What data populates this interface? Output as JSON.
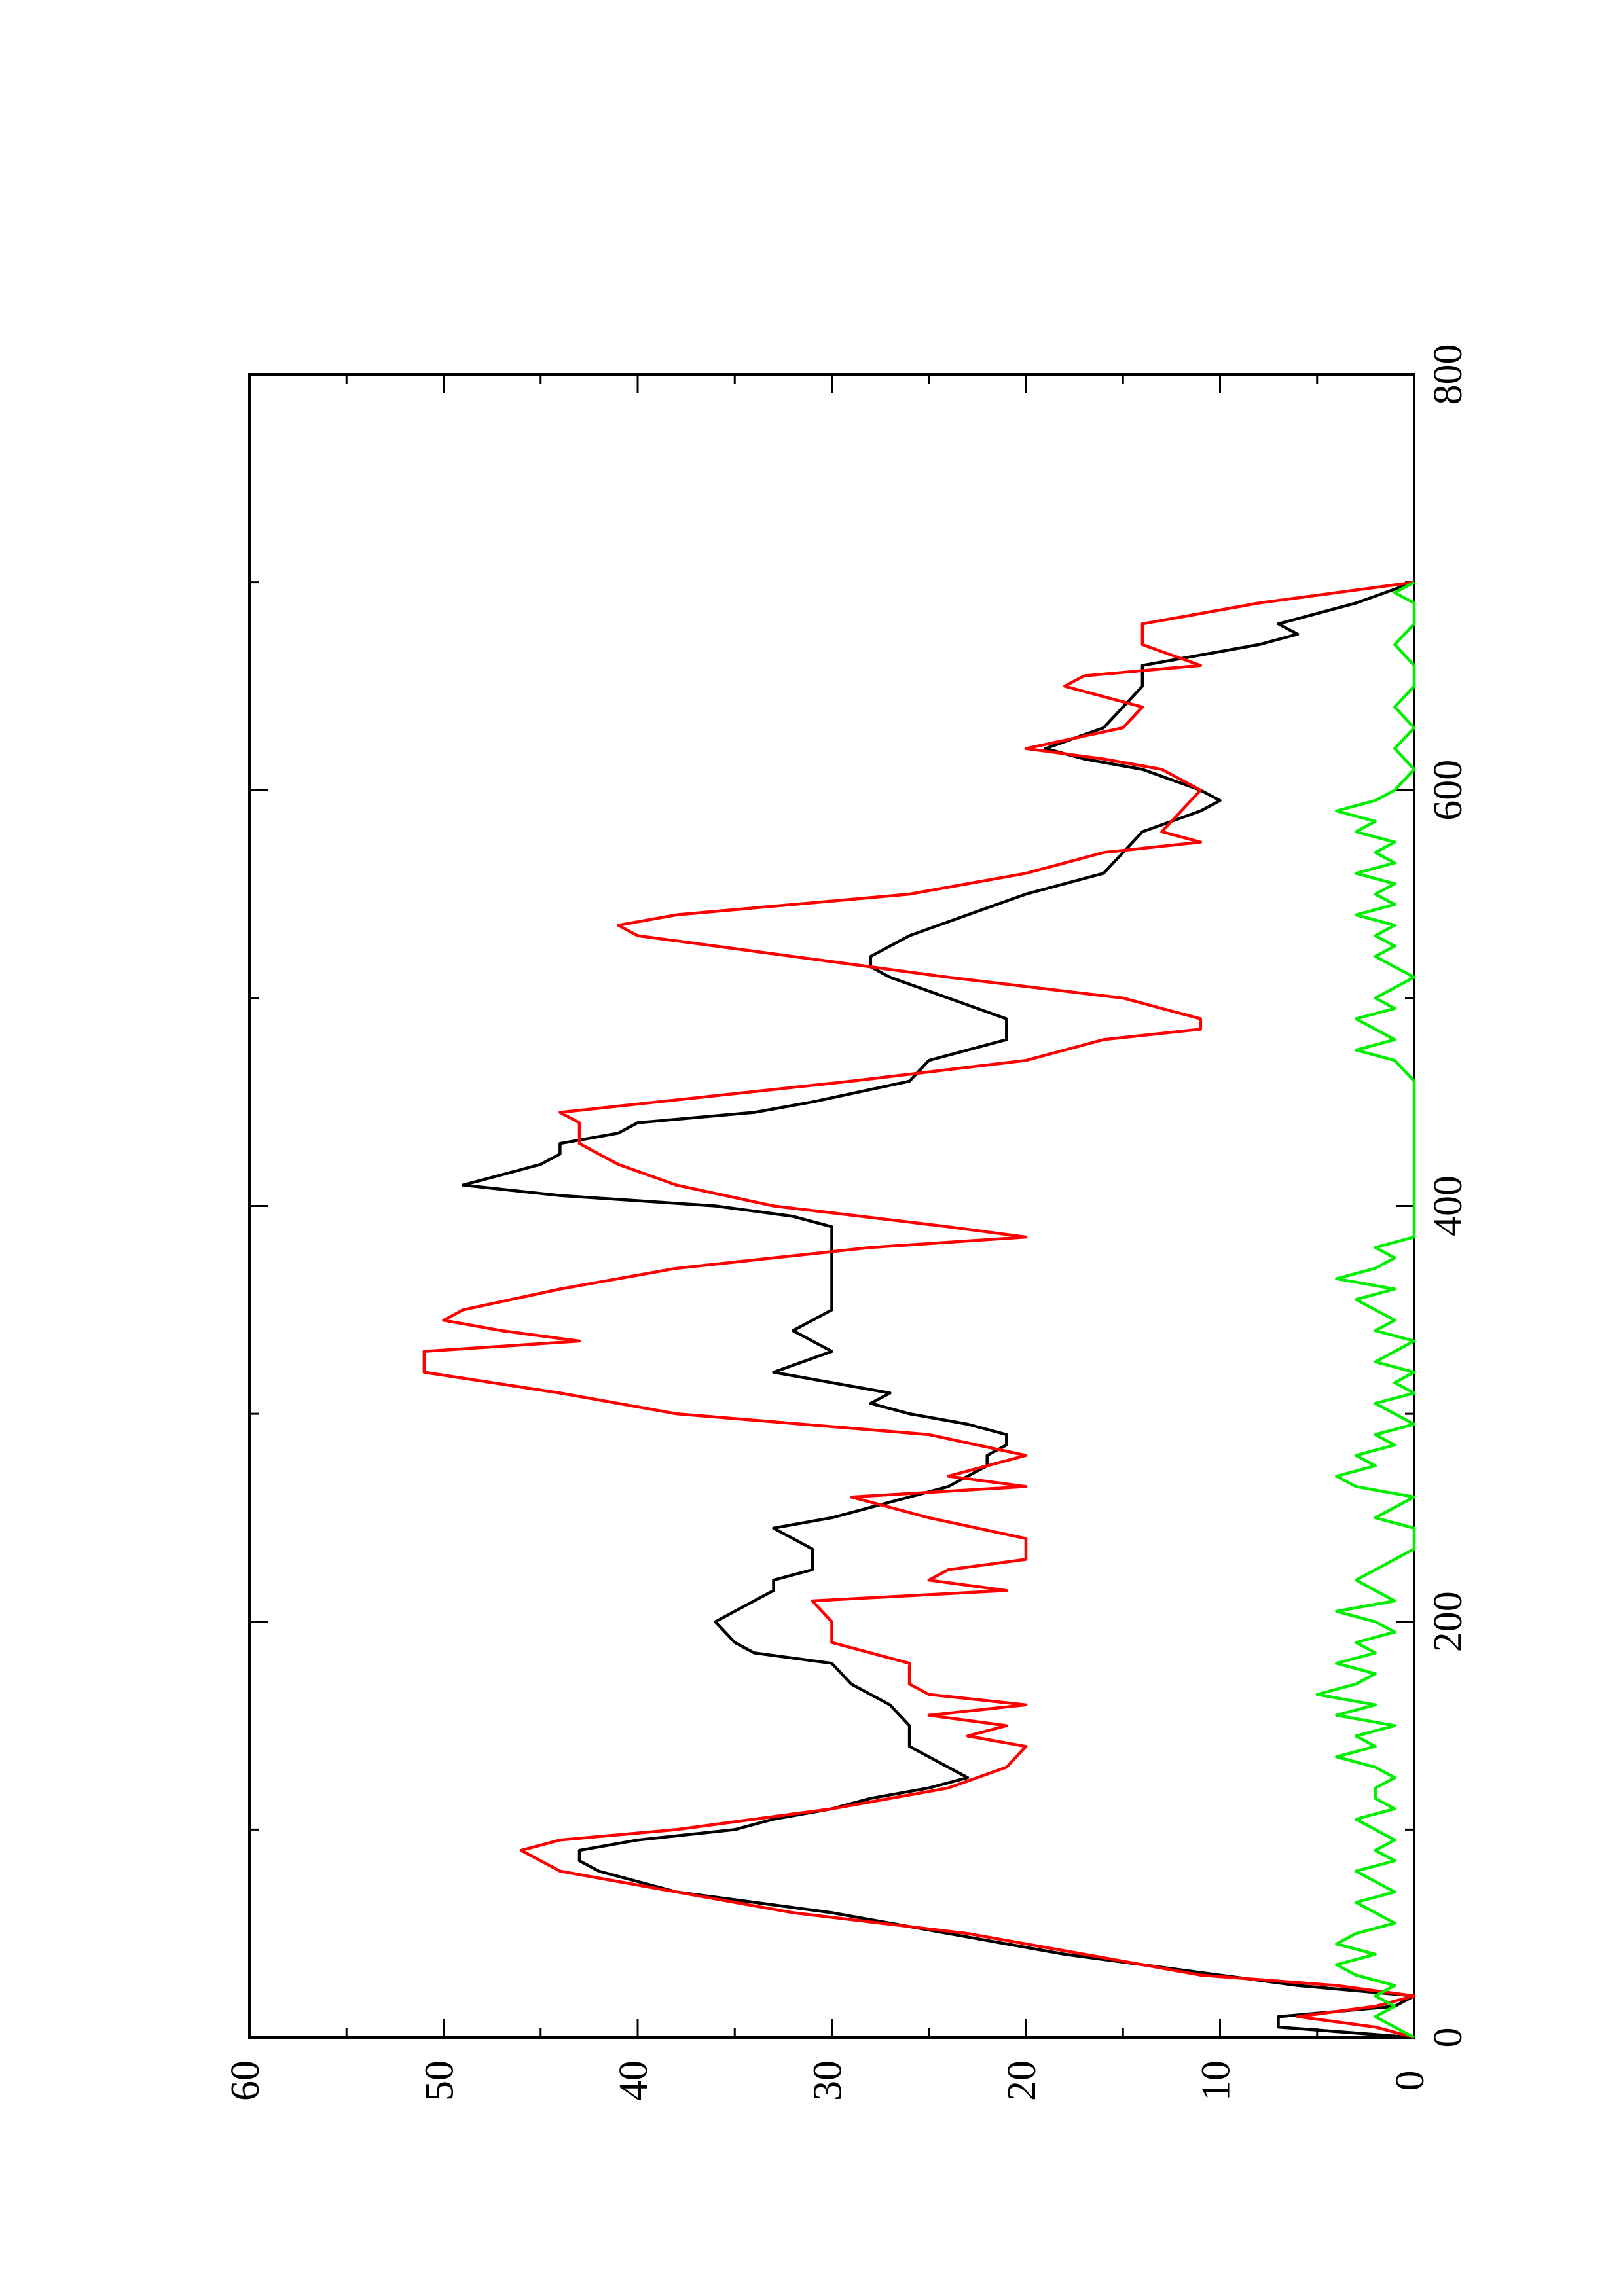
{
  "chart_data": {
    "type": "line",
    "orientation": "rotated-90-ccw",
    "title": "",
    "xlabel": "",
    "ylabel": "",
    "xlim": [
      0,
      800
    ],
    "ylim": [
      0,
      60
    ],
    "x_ticks": [
      0,
      200,
      400,
      600,
      800
    ],
    "x_minor_ticks": [
      100,
      300,
      500,
      700
    ],
    "y_ticks": [
      0,
      10,
      20,
      30,
      40,
      50,
      60
    ],
    "y_minor_ticks": [
      5,
      15,
      25,
      35,
      45,
      55
    ],
    "grid": false,
    "legend": "none",
    "series": [
      {
        "color": "#000000",
        "x": [
          0,
          5,
          10,
          15,
          20,
          25,
          30,
          40,
          50,
          60,
          65,
          70,
          80,
          85,
          90,
          95,
          100,
          105,
          110,
          115,
          120,
          125,
          130,
          135,
          140,
          150,
          160,
          170,
          180,
          185,
          190,
          200,
          205,
          210,
          215,
          220,
          225,
          230,
          235,
          240,
          245,
          250,
          255,
          260,
          265,
          270,
          275,
          280,
          285,
          290,
          295,
          300,
          305,
          310,
          320,
          330,
          340,
          350,
          360,
          370,
          380,
          390,
          395,
          400,
          405,
          410,
          415,
          420,
          425,
          430,
          435,
          440,
          445,
          450,
          460,
          470,
          480,
          490,
          500,
          510,
          515,
          520,
          525,
          530,
          540,
          550,
          560,
          570,
          580,
          590,
          595,
          600,
          610,
          615,
          620,
          630,
          640,
          650,
          660,
          670,
          675,
          680,
          690,
          700
        ],
        "values": [
          0,
          7,
          7,
          1,
          0,
          6,
          10,
          18,
          24,
          30,
          34,
          38,
          42,
          43,
          43,
          40,
          35,
          33,
          30,
          28,
          25,
          23,
          24,
          25,
          26,
          26,
          27,
          29,
          30,
          34,
          35,
          36,
          35,
          34,
          33,
          33,
          31,
          31,
          31,
          32,
          33,
          30,
          28,
          26,
          24,
          23,
          22,
          22,
          21,
          21,
          23,
          26,
          28,
          27,
          33,
          30,
          32,
          30,
          30,
          30,
          30,
          30,
          32,
          36,
          44,
          49,
          47,
          45,
          44,
          44,
          41,
          40,
          34,
          31,
          26,
          25,
          21,
          21,
          24,
          27,
          28,
          28,
          27,
          26,
          23,
          20,
          16,
          15,
          14,
          11,
          10,
          11,
          14,
          17,
          19,
          16,
          15,
          14,
          14,
          8,
          6,
          7,
          3,
          0
        ]
      },
      {
        "color": "#ff0000",
        "x": [
          0,
          5,
          10,
          15,
          20,
          25,
          30,
          40,
          50,
          60,
          70,
          80,
          90,
          95,
          100,
          110,
          120,
          130,
          140,
          145,
          150,
          155,
          160,
          165,
          170,
          180,
          190,
          200,
          210,
          215,
          220,
          225,
          230,
          240,
          250,
          260,
          265,
          270,
          280,
          290,
          300,
          310,
          320,
          330,
          335,
          340,
          345,
          350,
          360,
          370,
          380,
          385,
          390,
          400,
          410,
          420,
          430,
          440,
          445,
          450,
          460,
          470,
          480,
          485,
          490,
          500,
          510,
          520,
          530,
          535,
          540,
          550,
          560,
          570,
          575,
          580,
          590,
          600,
          610,
          615,
          620,
          630,
          640,
          650,
          655,
          660,
          670,
          680,
          690,
          700
        ],
        "values": [
          0,
          2,
          6,
          2,
          0,
          4,
          11,
          17,
          23,
          32,
          38,
          44,
          46,
          44,
          38,
          30,
          24,
          21,
          20,
          23,
          21,
          25,
          20,
          25,
          26,
          26,
          30,
          30,
          31,
          21,
          25,
          24,
          20,
          20,
          25,
          29,
          20,
          24,
          20,
          25,
          38,
          44,
          51,
          51,
          43,
          47,
          50,
          49,
          44,
          38,
          28,
          20,
          24,
          33,
          38,
          41,
          43,
          43,
          44,
          39,
          29,
          20,
          16,
          11,
          11,
          15,
          24,
          32,
          40,
          41,
          38,
          26,
          20,
          16,
          11,
          13,
          12,
          11,
          13,
          16,
          20,
          15,
          14,
          18,
          17,
          11,
          14,
          14,
          8,
          0
        ]
      },
      {
        "color": "#00ee00",
        "x": [
          0,
          5,
          10,
          15,
          20,
          25,
          30,
          35,
          40,
          45,
          50,
          55,
          60,
          65,
          70,
          75,
          80,
          85,
          90,
          95,
          100,
          105,
          110,
          115,
          120,
          125,
          130,
          135,
          140,
          145,
          150,
          155,
          160,
          165,
          170,
          175,
          180,
          185,
          190,
          195,
          200,
          205,
          210,
          215,
          220,
          225,
          230,
          235,
          240,
          245,
          250,
          255,
          260,
          265,
          270,
          275,
          280,
          285,
          290,
          295,
          300,
          305,
          310,
          315,
          320,
          325,
          330,
          335,
          340,
          345,
          350,
          355,
          360,
          365,
          370,
          375,
          380,
          385,
          390,
          395,
          400,
          410,
          420,
          430,
          440,
          450,
          460,
          470,
          475,
          480,
          485,
          490,
          495,
          500,
          505,
          510,
          515,
          520,
          525,
          530,
          535,
          540,
          545,
          550,
          555,
          560,
          565,
          570,
          575,
          580,
          585,
          590,
          595,
          600,
          610,
          620,
          630,
          640,
          650,
          660,
          670,
          680,
          690,
          695,
          700
        ],
        "values": [
          0,
          1,
          2,
          1,
          2,
          1,
          3,
          4,
          2,
          4,
          3,
          1,
          2,
          3,
          1,
          2,
          3,
          1,
          2,
          1,
          2,
          3,
          1,
          2,
          2,
          1,
          2,
          4,
          2,
          3,
          1,
          4,
          2,
          5,
          3,
          2,
          4,
          2,
          3,
          1,
          2,
          4,
          1,
          2,
          3,
          2,
          1,
          0,
          0,
          0,
          2,
          1,
          0,
          3,
          4,
          2,
          3,
          1,
          2,
          0,
          1,
          2,
          0,
          1,
          0,
          2,
          1,
          0,
          2,
          1,
          2,
          3,
          1,
          4,
          2,
          1,
          2,
          0,
          0,
          0,
          0,
          0,
          0,
          0,
          0,
          0,
          0,
          1,
          3,
          1,
          2,
          3,
          1,
          2,
          1,
          0,
          1,
          2,
          1,
          2,
          1,
          3,
          1,
          2,
          1,
          3,
          1,
          2,
          1,
          3,
          2,
          4,
          2,
          1,
          0,
          1,
          0,
          1,
          0,
          0,
          1,
          0,
          0,
          1,
          0
        ]
      }
    ]
  }
}
